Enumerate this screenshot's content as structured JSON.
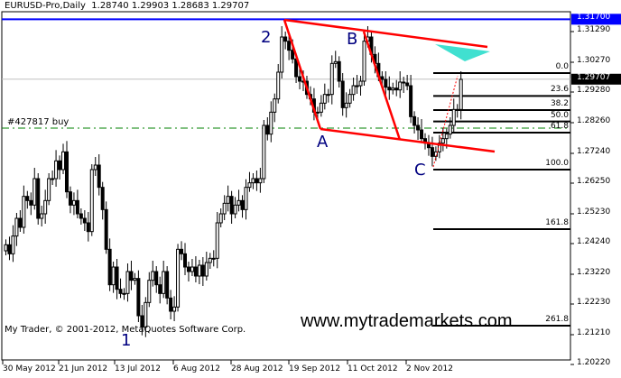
{
  "header": {
    "symbol": "EURUSD-Pro,Daily",
    "ohlc": "1.28740 1.29903 1.28683 1.29707"
  },
  "copyright": "My Trader, © 2001-2012, MetaQuotes Software Corp.",
  "watermark": "www.mytrademarkets.com",
  "order_label": "#427817 buy",
  "wave_labels": {
    "one": "1",
    "two": "2",
    "a": "A",
    "b": "B",
    "c": "C"
  },
  "colors": {
    "blue_level": "#0000ff",
    "trend": "#ff0000",
    "order": "#008000",
    "target": "#40e0d0",
    "current": "#c0c0c0"
  },
  "chart_data": {
    "type": "candlestick",
    "x_ticks": [
      "30 May 2012",
      "21 Jun 2012",
      "13 Jul 2012",
      "6 Aug 2012",
      "28 Aug 2012",
      "19 Sep 2012",
      "11 Oct 2012",
      "2 Nov 2012"
    ],
    "y_ticks": [
      "1.31290",
      "1.30270",
      "1.29280",
      "1.28260",
      "1.27240",
      "1.26250",
      "1.25230",
      "1.24240",
      "1.23220",
      "1.22230",
      "1.21210",
      "1.20220"
    ],
    "ylim": [
      1.2005,
      1.317
    ],
    "closes": [
      1.242,
      1.239,
      1.2449,
      1.2508,
      1.2478,
      1.2581,
      1.2567,
      1.2552,
      1.264,
      1.2508,
      1.2523,
      1.2567,
      1.264,
      1.264,
      1.2699,
      1.267,
      1.2729,
      1.2596,
      1.2552,
      1.2567,
      1.2523,
      1.2508,
      1.2493,
      1.2464,
      1.267,
      1.2685,
      1.2611,
      1.2537,
      1.2405,
      1.2287,
      1.2346,
      1.2272,
      1.2258,
      1.2258,
      1.2331,
      1.2302,
      1.2308,
      1.2184,
      1.2146,
      1.2228,
      1.2302,
      1.2331,
      1.2287,
      1.2258,
      1.2331,
      1.2243,
      1.2199,
      1.2213,
      1.2405,
      1.239,
      1.2346,
      1.2331,
      1.2346,
      1.2316,
      1.2352,
      1.2316,
      1.2361,
      1.2375,
      1.2375,
      1.2493,
      1.2523,
      1.2558,
      1.2581,
      1.2523,
      1.2552,
      1.2567,
      1.2537,
      1.2611,
      1.2626,
      1.264,
      1.2626,
      1.264,
      1.2817,
      1.2788,
      1.2861,
      1.2905,
      1.2994,
      1.3111,
      1.3097,
      1.3067,
      1.3038,
      1.2979,
      1.2964,
      1.2964,
      1.292,
      1.2905,
      1.2861,
      1.2861,
      1.2891,
      1.292,
      1.292,
      1.3023,
      1.3029,
      1.2964,
      1.2876,
      1.2891,
      1.292,
      1.2949,
      1.2949,
      1.2964,
      1.3097,
      1.3111,
      1.3053,
      1.3023,
      1.2979,
      1.297,
      1.2944,
      1.2935,
      1.2941,
      1.2935,
      1.2961,
      1.2958,
      1.2949,
      1.2846,
      1.2817,
      1.2802,
      1.2773,
      1.2758,
      1.2743,
      1.2714,
      1.2729,
      1.2758,
      1.2773,
      1.2788,
      1.2817,
      1.287,
      1.287,
      1.297
    ],
    "levels": {
      "resistance": {
        "label": "1.31700",
        "value": 1.317
      },
      "current": {
        "label": "1.29707",
        "value": 1.29707
      },
      "order": 1.2808
    },
    "fibonacci": [
      {
        "label": "0.0",
        "value": 1.2991
      },
      {
        "label": "23.6",
        "value": 1.2915
      },
      {
        "label": "38.2",
        "value": 1.2868
      },
      {
        "label": "50.0",
        "value": 1.283
      },
      {
        "label": "61.8",
        "value": 1.2793
      },
      {
        "label": "100.0",
        "value": 1.267
      },
      {
        "label": "161.8",
        "value": 1.2472
      },
      {
        "label": "261.8",
        "value": 1.2151
      }
    ]
  }
}
